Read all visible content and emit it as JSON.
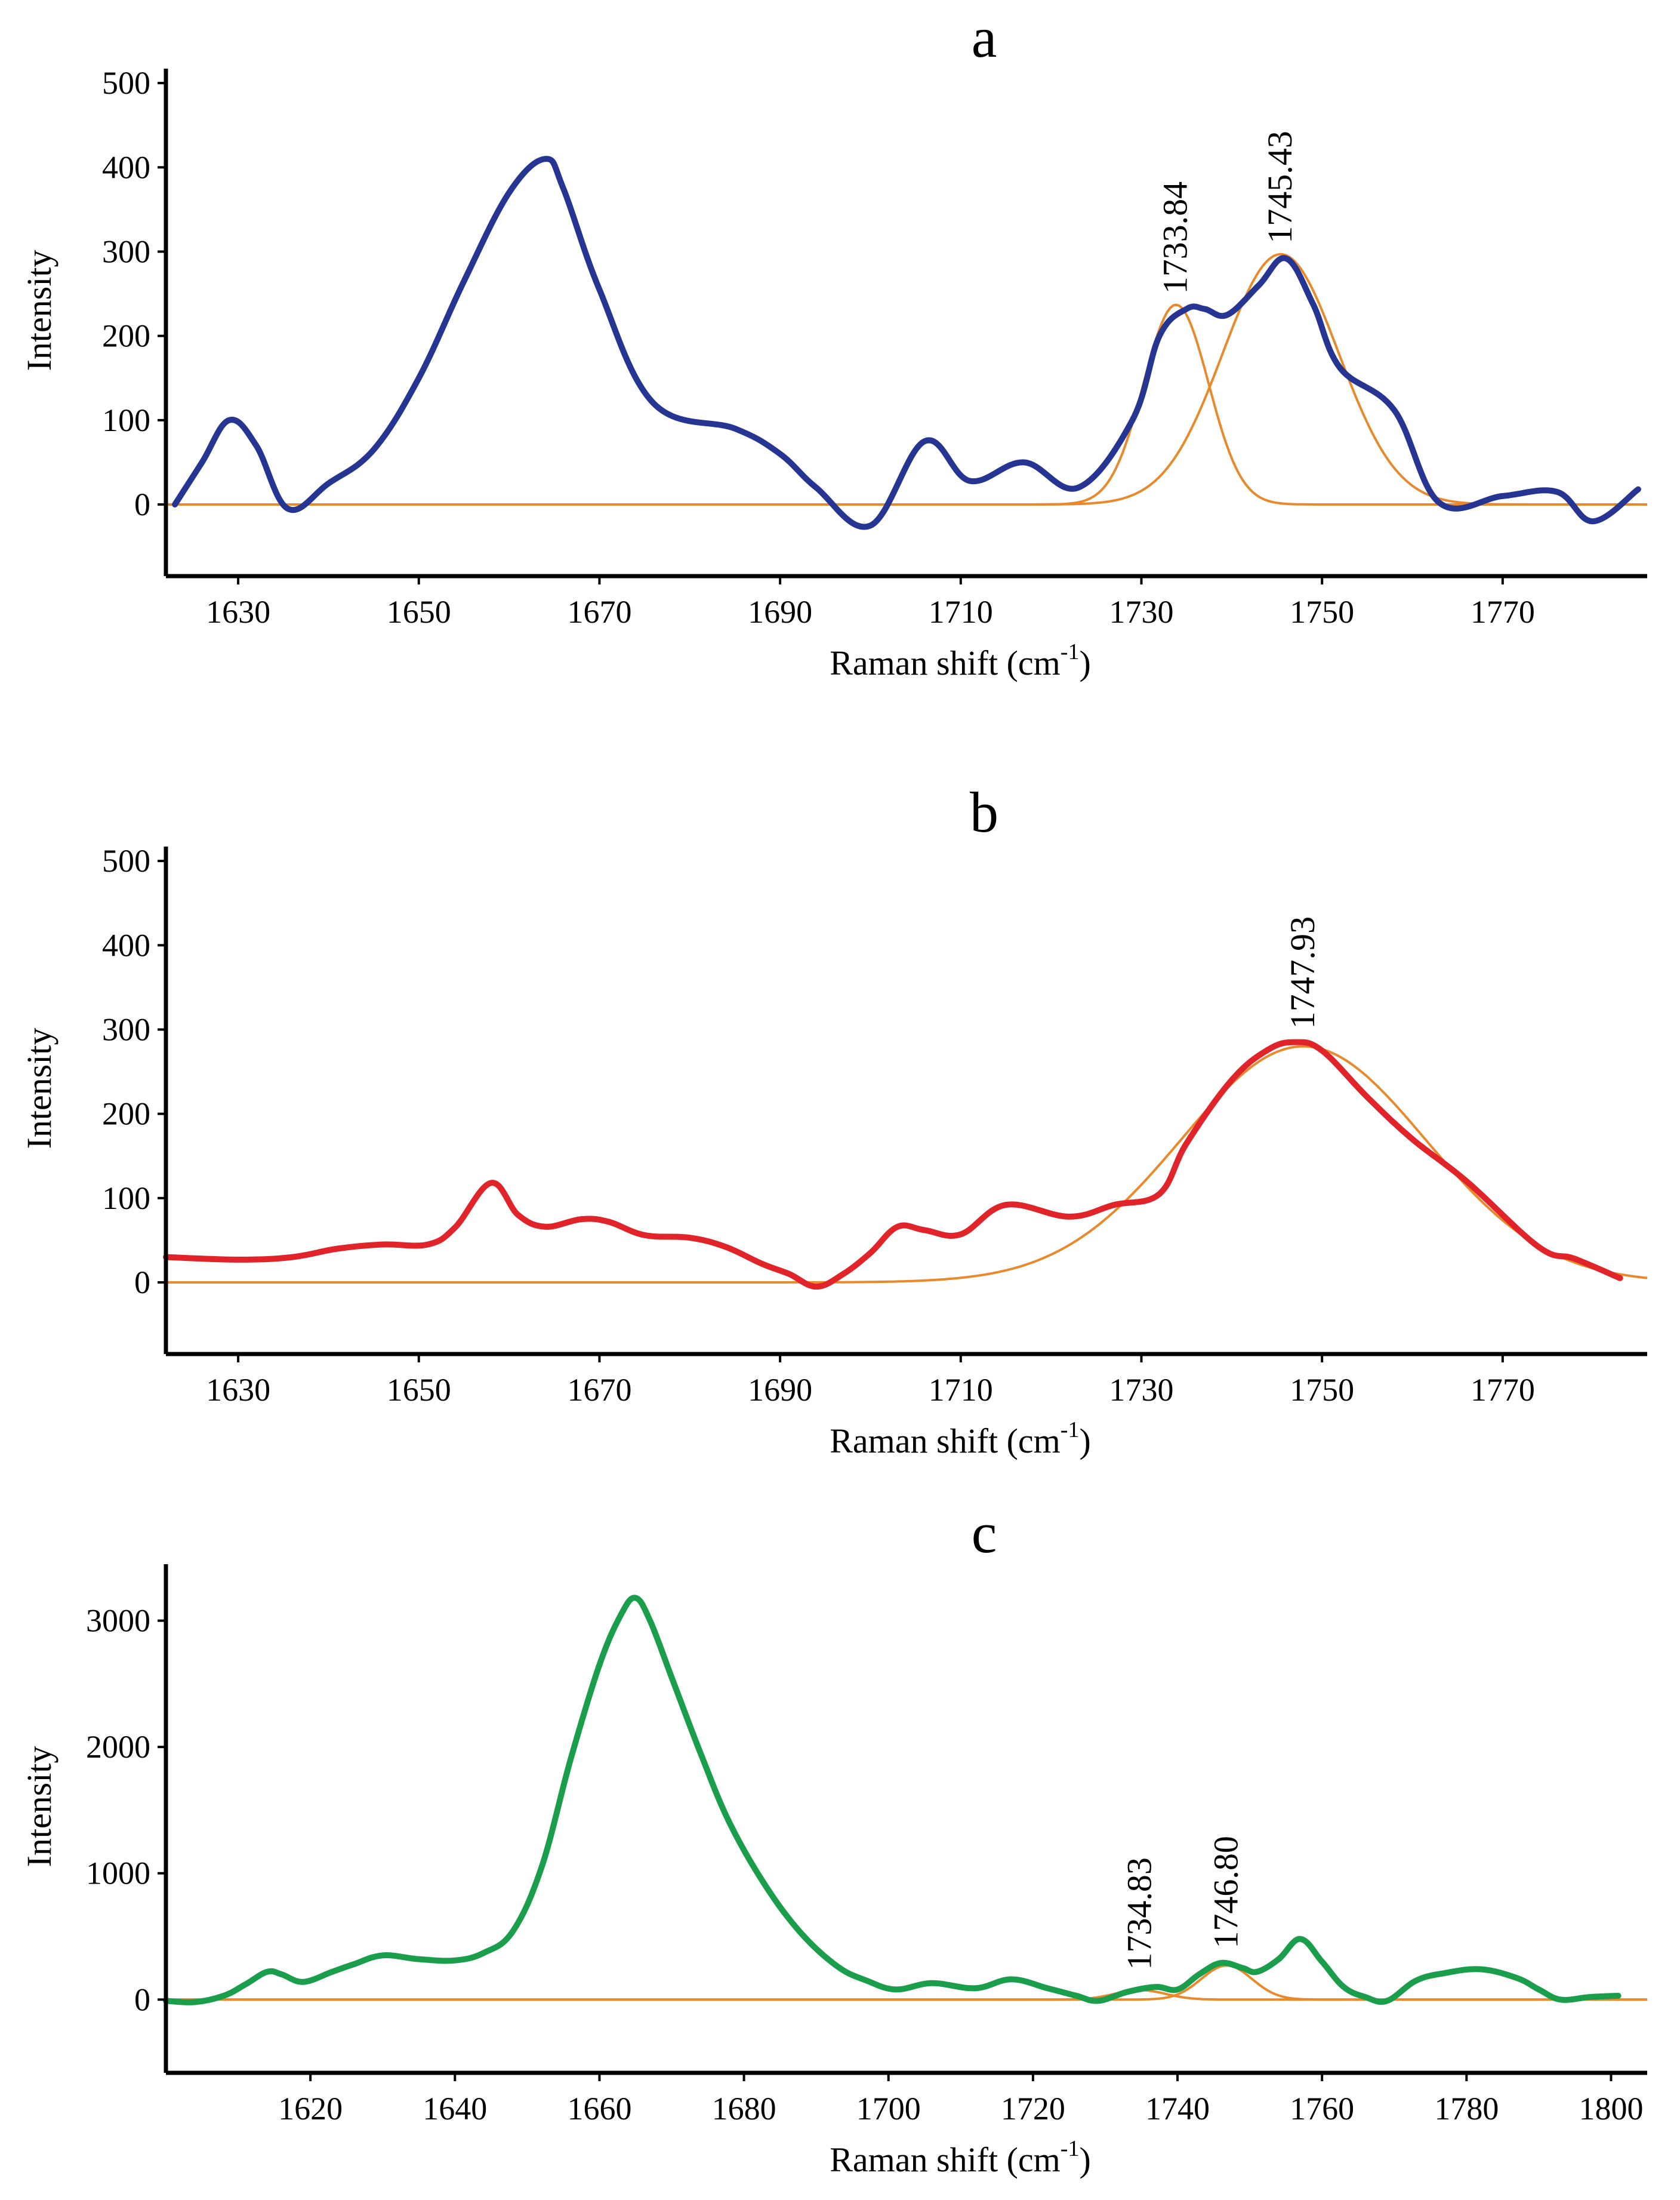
{
  "figure": {
    "aria_label": "Raman spectra panels a, b, c"
  },
  "chart_data": [
    {
      "id": "a",
      "type": "line",
      "title": "a",
      "xlabel": "Raman shift (cm",
      "xlabel_sup": "-1",
      "xlabel_end": ")",
      "ylabel": "Intensity",
      "xlim": [
        1622,
        1786
      ],
      "ylim": [
        -85,
        510
      ],
      "xticks": [
        1630,
        1650,
        1670,
        1690,
        1710,
        1730,
        1750,
        1770
      ],
      "yticks": [
        0,
        100,
        200,
        300,
        400,
        500
      ],
      "line_color": "#263592",
      "fit_color": "#e8892b",
      "series": [
        {
          "name": "spectrum",
          "x": [
            1623,
            1626,
            1629,
            1632,
            1635.5,
            1640,
            1645,
            1650,
            1655,
            1660,
            1664,
            1666,
            1670,
            1676,
            1685,
            1690,
            1694,
            1700,
            1706,
            1711,
            1717,
            1723,
            1729,
            1732,
            1735,
            1737,
            1739.5,
            1743,
            1746,
            1749,
            1752,
            1758,
            1763,
            1770,
            1776,
            1780,
            1785
          ],
          "y": [
            0,
            50,
            100,
            70,
            -5,
            25,
            65,
            150,
            265,
            370,
            410,
            375,
            255,
            120,
            90,
            60,
            20,
            -25,
            75,
            28,
            50,
            20,
            100,
            200,
            232,
            232,
            225,
            260,
            292,
            238,
            162,
            112,
            2,
            10,
            15,
            -20,
            18
          ]
        },
        {
          "name": "fit-1733.84",
          "center": 1733.84,
          "amplitude": 237,
          "width": 3.6
        },
        {
          "name": "fit-1745.43",
          "center": 1745.43,
          "amplitude": 297,
          "width": 6.4
        }
      ],
      "annotations": [
        {
          "text": "1733.84",
          "x": 1733.84,
          "y": 237
        },
        {
          "text": "1745.43",
          "x": 1745.43,
          "y": 297
        }
      ]
    },
    {
      "id": "b",
      "type": "line",
      "title": "b",
      "xlabel": "Raman shift (cm",
      "xlabel_sup": "-1",
      "xlabel_end": ")",
      "ylabel": "Intensity",
      "xlim": [
        1622,
        1786
      ],
      "ylim": [
        -85,
        510
      ],
      "xticks": [
        1630,
        1650,
        1670,
        1690,
        1710,
        1730,
        1750,
        1770
      ],
      "yticks": [
        0,
        100,
        200,
        300,
        400,
        500
      ],
      "line_color": "#e0242a",
      "fit_color": "#e8892b",
      "series": [
        {
          "name": "spectrum",
          "x": [
            1622,
            1630,
            1636,
            1641,
            1646,
            1651,
            1654,
            1658,
            1661,
            1664,
            1668,
            1671,
            1675,
            1680,
            1684,
            1688,
            1691,
            1694,
            1697,
            1700,
            1703,
            1706,
            1710,
            1715,
            1722,
            1727,
            1732,
            1735,
            1740,
            1744,
            1747,
            1750,
            1755,
            1760,
            1766,
            1774,
            1778,
            1783
          ],
          "y": [
            30,
            27,
            30,
            40,
            45,
            45,
            65,
            118,
            80,
            66,
            75,
            72,
            56,
            53,
            42,
            22,
            10,
            -5,
            10,
            35,
            66,
            62,
            57,
            92,
            78,
            92,
            105,
            165,
            240,
            276,
            285,
            275,
            220,
            170,
            120,
            42,
            28,
            5
          ]
        },
        {
          "name": "fit-1747.93",
          "center": 1747.93,
          "amplitude": 280,
          "width": 13.5
        }
      ],
      "annotations": [
        {
          "text": "1747.93",
          "x": 1747.93,
          "y": 288
        }
      ]
    },
    {
      "id": "c",
      "type": "line",
      "title": "c",
      "xlabel": "Raman shift (cm",
      "xlabel_sup": "-1",
      "xlabel_end": ")",
      "ylabel": "Intensity",
      "xlim": [
        1600,
        1805
      ],
      "ylim": [
        -580,
        3400
      ],
      "xticks": [
        1620,
        1640,
        1660,
        1680,
        1700,
        1720,
        1740,
        1760,
        1780,
        1800
      ],
      "yticks": [
        0,
        1000,
        2000,
        3000
      ],
      "line_color": "#1a9e4b",
      "fit_color": "#e8892b",
      "series": [
        {
          "name": "spectrum",
          "x": [
            1600,
            1604,
            1608,
            1611,
            1614,
            1616,
            1619,
            1623,
            1626,
            1630,
            1635,
            1640,
            1644,
            1648,
            1652,
            1656,
            1660,
            1663,
            1665,
            1667,
            1670,
            1674,
            1678,
            1683,
            1688,
            1693,
            1697,
            1701,
            1706,
            1712,
            1717,
            1722,
            1726,
            1729,
            1733,
            1737,
            1740,
            1743,
            1746,
            1749,
            1751,
            1754,
            1757,
            1760,
            1763,
            1766,
            1769,
            1773,
            1777,
            1782,
            1787,
            1790,
            1793,
            1797,
            1801
          ],
          "y": [
            -10,
            -20,
            30,
            120,
            220,
            200,
            140,
            220,
            280,
            350,
            320,
            310,
            370,
            540,
            1050,
            1900,
            2650,
            3050,
            3180,
            3000,
            2550,
            1950,
            1400,
            900,
            520,
            260,
            150,
            80,
            130,
            90,
            160,
            90,
            30,
            -10,
            60,
            100,
            80,
            200,
            290,
            250,
            220,
            320,
            480,
            300,
            100,
            20,
            -10,
            150,
            210,
            240,
            170,
            80,
            0,
            20,
            30
          ]
        },
        {
          "name": "fit-1734.83",
          "center": 1734.83,
          "amplitude": 75,
          "width": 3.5
        },
        {
          "name": "fit-1746.80",
          "center": 1746.8,
          "amplitude": 270,
          "width": 3.5
        }
      ],
      "annotations": [
        {
          "text": "1734.83",
          "x": 1734.83,
          "y": 150
        },
        {
          "text": "1746.80",
          "x": 1746.8,
          "y": 320
        }
      ]
    }
  ]
}
